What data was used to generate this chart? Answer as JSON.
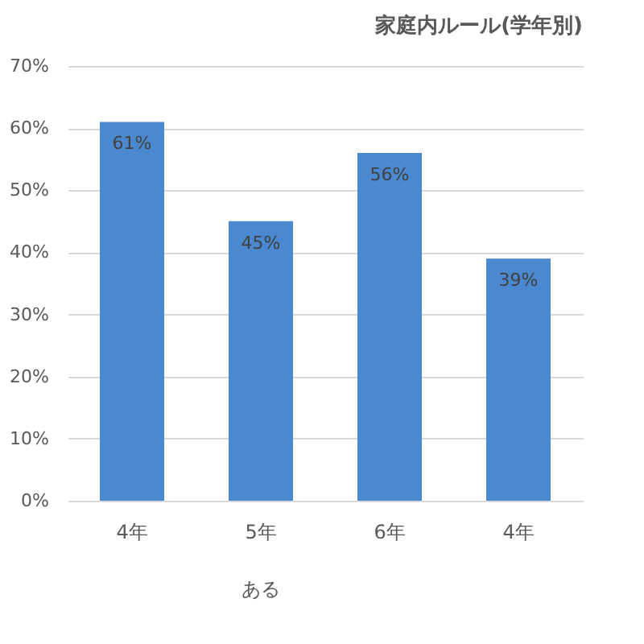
{
  "chart_data": {
    "type": "bar",
    "title": "家庭内ルール(学年別)",
    "categories": [
      "4年",
      "5年",
      "6年",
      "4年"
    ],
    "values": [
      61,
      45,
      56,
      39
    ],
    "value_labels": [
      "61%",
      "45%",
      "56%",
      "39%"
    ],
    "color": "#4a89cf",
    "ylim": [
      0,
      70
    ],
    "yticks": [
      {
        "value": 0,
        "label": "0%"
      },
      {
        "value": 10,
        "label": "10%"
      },
      {
        "value": 20,
        "label": "20%"
      },
      {
        "value": 30,
        "label": "30%"
      },
      {
        "value": 40,
        "label": "40%"
      },
      {
        "value": 50,
        "label": "50%"
      },
      {
        "value": 60,
        "label": "60%"
      },
      {
        "value": 70,
        "label": "70%"
      }
    ],
    "grid": "y",
    "annotations": [
      "ある"
    ]
  }
}
